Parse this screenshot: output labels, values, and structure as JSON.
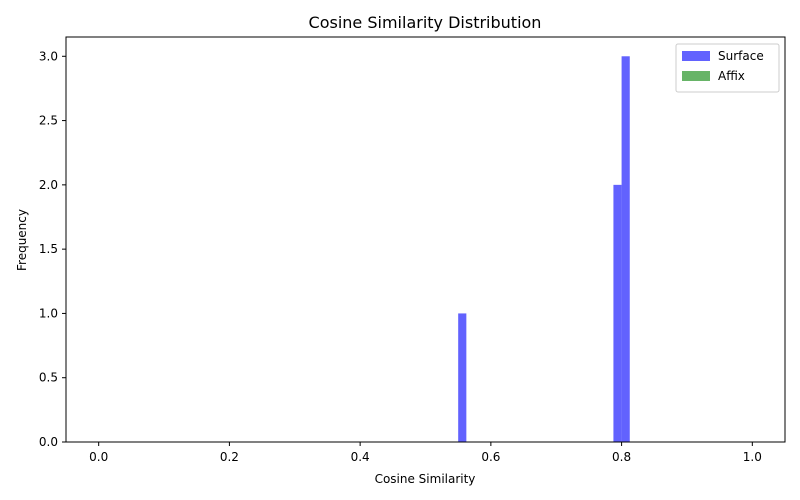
{
  "chart_data": {
    "type": "bar",
    "title": "Cosine Similarity Distribution",
    "xlabel": "Cosine Similarity",
    "ylabel": "Frequency",
    "xlim": [
      -0.05,
      1.05
    ],
    "ylim": [
      0,
      3.15
    ],
    "x_ticks": [
      0.0,
      0.2,
      0.4,
      0.6,
      0.8,
      1.0
    ],
    "x_tick_labels": [
      "0.0",
      "0.2",
      "0.4",
      "0.6",
      "0.8",
      "1.0"
    ],
    "y_ticks": [
      0.0,
      0.5,
      1.0,
      1.5,
      2.0,
      2.5,
      3.0
    ],
    "y_tick_labels": [
      "0.0",
      "0.5",
      "1.0",
      "1.5",
      "2.0",
      "2.5",
      "3.0"
    ],
    "bin_width": 0.0125,
    "grid": false,
    "legend_position": "top-right",
    "series": [
      {
        "name": "Surface",
        "color": "#6262fe",
        "bins": [
          {
            "x_start": 0.55,
            "x_end": 0.5625,
            "value": 1
          },
          {
            "x_start": 0.7875,
            "x_end": 0.8,
            "value": 2
          },
          {
            "x_start": 0.8,
            "x_end": 0.8125,
            "value": 3
          }
        ]
      },
      {
        "name": "Affix",
        "color": "#67b467",
        "bins": []
      }
    ]
  }
}
